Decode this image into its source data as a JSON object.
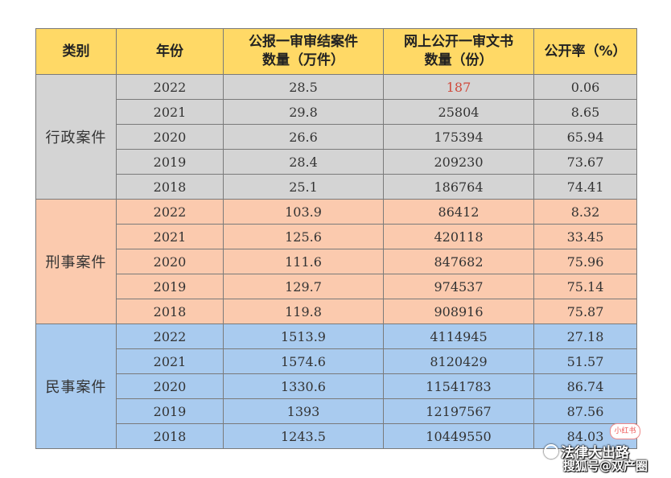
{
  "colors": {
    "header": "#ffd966",
    "xingzheng": "#d4d4d4",
    "xingshi": "#fbcaae",
    "minshi": "#a9cbef",
    "highlight_text": "#d04a3c"
  },
  "header": {
    "category": "类别",
    "year": "年份",
    "col3_line1": "公报一审审结案件",
    "col3_line2": "数量（万件）",
    "col4_line1": "网上公开一审文书",
    "col4_line2": "数量（份）",
    "col5": "公开率（%）"
  },
  "groups": [
    {
      "category": "行政案件",
      "rows": [
        {
          "year": "2022",
          "cases": "28.5",
          "docs": "187",
          "rate": "0.06"
        },
        {
          "year": "2021",
          "cases": "29.8",
          "docs": "25804",
          "rate": "8.65"
        },
        {
          "year": "2020",
          "cases": "26.6",
          "docs": "175394",
          "rate": "65.94"
        },
        {
          "year": "2019",
          "cases": "28.4",
          "docs": "209230",
          "rate": "73.67"
        },
        {
          "year": "2018",
          "cases": "25.1",
          "docs": "186764",
          "rate": "74.41"
        }
      ]
    },
    {
      "category": "刑事案件",
      "rows": [
        {
          "year": "2022",
          "cases": "103.9",
          "docs": "86412",
          "rate": "8.32"
        },
        {
          "year": "2021",
          "cases": "125.6",
          "docs": "420118",
          "rate": "33.45"
        },
        {
          "year": "2020",
          "cases": "111.6",
          "docs": "847682",
          "rate": "75.96"
        },
        {
          "year": "2019",
          "cases": "129.7",
          "docs": "974537",
          "rate": "75.14"
        },
        {
          "year": "2018",
          "cases": "119.8",
          "docs": "908916",
          "rate": "75.87"
        }
      ]
    },
    {
      "category": "民事案件",
      "rows": [
        {
          "year": "2022",
          "cases": "1513.9",
          "docs": "4114945",
          "rate": "27.18"
        },
        {
          "year": "2021",
          "cases": "1574.6",
          "docs": "8120429",
          "rate": "51.57"
        },
        {
          "year": "2020",
          "cases": "1330.6",
          "docs": "11541783",
          "rate": "86.74"
        },
        {
          "year": "2019",
          "cases": "1393",
          "docs": "12197567",
          "rate": "87.56"
        },
        {
          "year": "2018",
          "cases": "1243.5",
          "docs": "10449550",
          "rate": "84.03"
        }
      ]
    }
  ],
  "watermark": {
    "badge": "小红书",
    "name": "法律大出路",
    "sub": "搜狐号@双产圈"
  }
}
